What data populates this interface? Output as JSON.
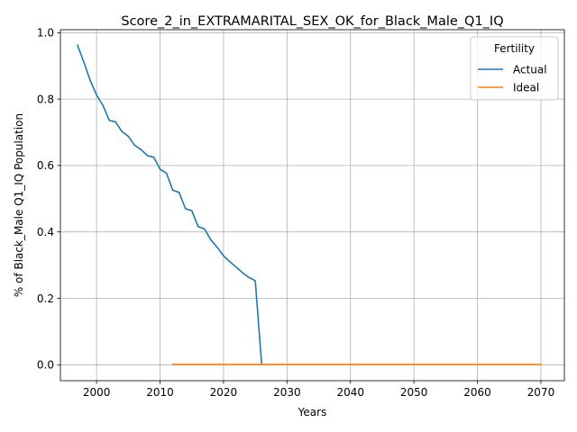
{
  "chart_data": {
    "type": "line",
    "title": "Score_2_in_EXTRAMARITAL_SEX_OK_for_Black_Male_Q1_IQ",
    "xlabel": "Years",
    "ylabel": "% of Black_Male Q1_IQ Population",
    "xlim": [
      1994.3,
      2073.7
    ],
    "ylim": [
      -0.048,
      1.009
    ],
    "xticks": [
      2000,
      2010,
      2020,
      2030,
      2040,
      2050,
      2060,
      2070
    ],
    "yticks": [
      0.0,
      0.2,
      0.4,
      0.6,
      0.8,
      1.0
    ],
    "xtick_labels": [
      "2000",
      "2010",
      "2020",
      "2030",
      "2040",
      "2050",
      "2060",
      "2070"
    ],
    "ytick_labels": [
      "0.0",
      "0.2",
      "0.4",
      "0.6",
      "0.8",
      "1.0"
    ],
    "grid": true,
    "legend": {
      "title": "Fertility",
      "position": "top-right"
    },
    "series": [
      {
        "name": "Actual",
        "color": "#1f77b4",
        "x": [
          1997,
          1998,
          1999,
          2000,
          2001,
          2002,
          2003,
          2004,
          2005,
          2006,
          2007,
          2008,
          2009,
          2010,
          2011,
          2012,
          2013,
          2014,
          2015,
          2016,
          2017,
          2018,
          2019,
          2020,
          2021,
          2022,
          2023,
          2024,
          2025,
          2026
        ],
        "y": [
          0.962,
          0.911,
          0.856,
          0.812,
          0.781,
          0.736,
          0.731,
          0.702,
          0.688,
          0.661,
          0.648,
          0.63,
          0.625,
          0.589,
          0.577,
          0.526,
          0.519,
          0.47,
          0.464,
          0.416,
          0.409,
          0.376,
          0.354,
          0.328,
          0.31,
          0.294,
          0.277,
          0.263,
          0.253,
          0.003
        ]
      },
      {
        "name": "Ideal",
        "color": "#ff7f0e",
        "x": [
          2012,
          2020,
          2030,
          2040,
          2050,
          2060,
          2070
        ],
        "y": [
          0.001,
          0.001,
          0.001,
          0.001,
          0.001,
          0.001,
          0.001
        ]
      }
    ]
  }
}
